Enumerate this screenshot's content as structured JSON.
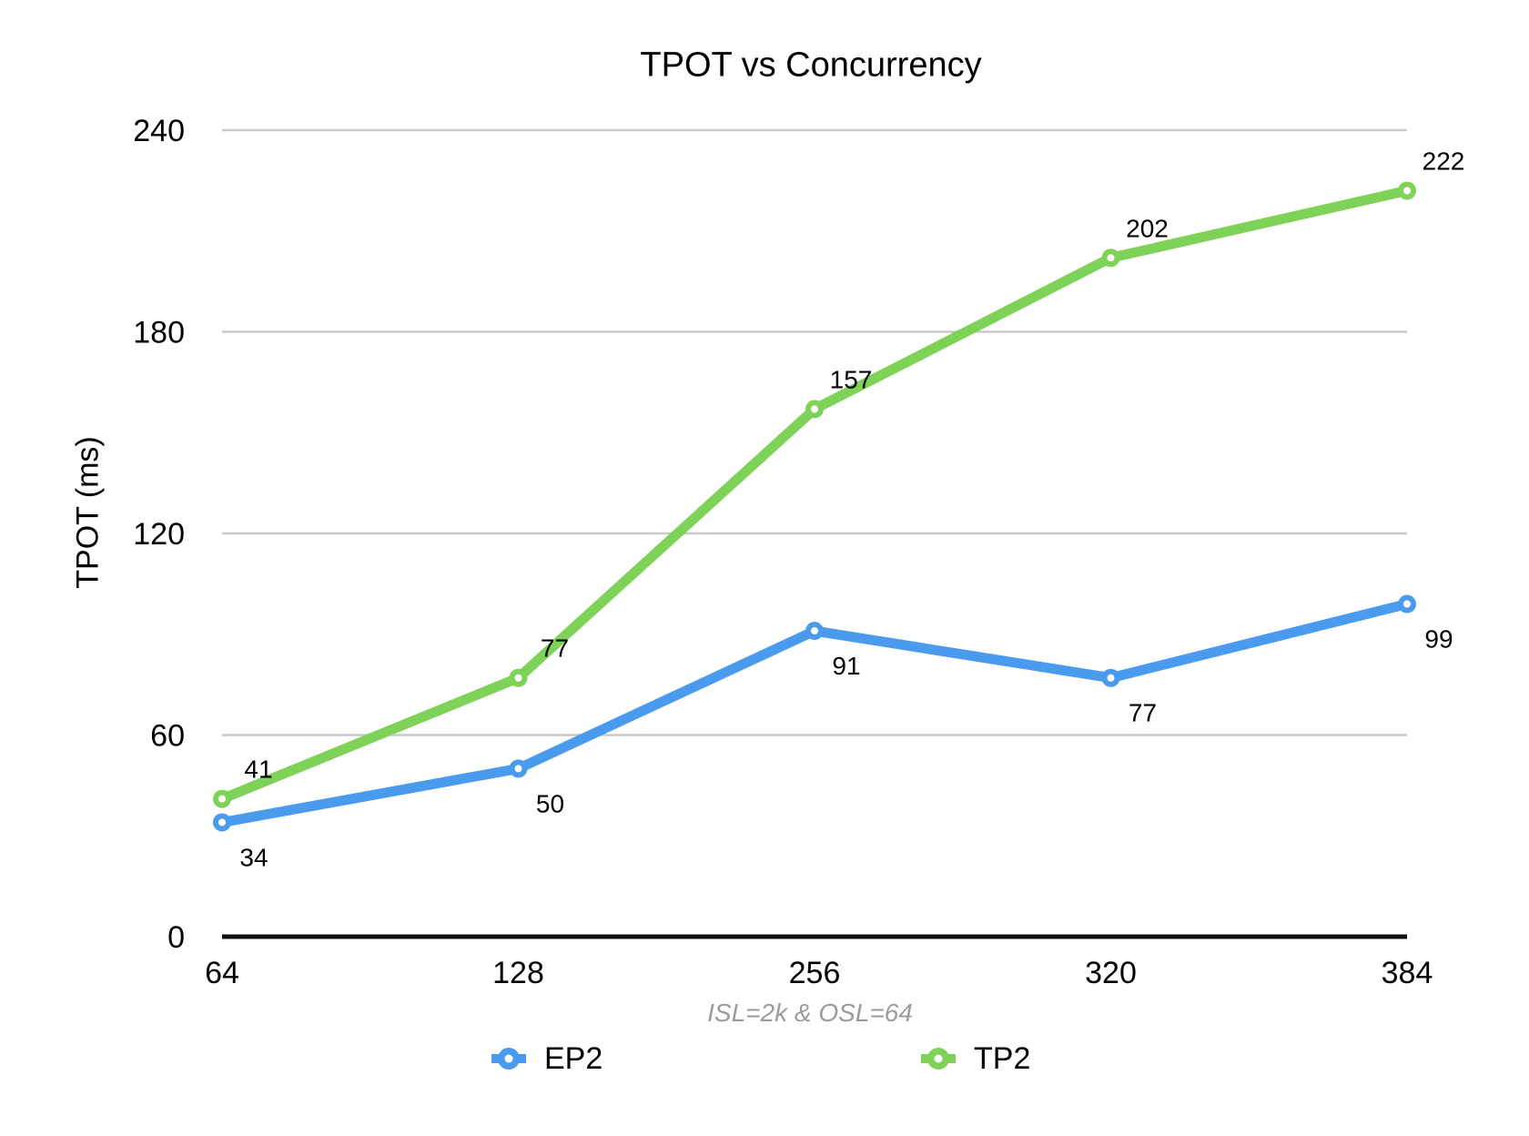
{
  "chart_data": {
    "type": "line",
    "title": "TPOT vs Concurrency",
    "ylabel": "TPOT (ms)",
    "xlabel": "",
    "caption": "ISL=2k & OSL=64",
    "categories": [
      "64",
      "128",
      "256",
      "320",
      "384"
    ],
    "series": [
      {
        "name": "EP2",
        "color": "#4A9BEE",
        "values": [
          34,
          50,
          91,
          77,
          99
        ],
        "label_side": "below"
      },
      {
        "name": "TP2",
        "color": "#7DD257",
        "values": [
          41,
          77,
          157,
          202,
          222
        ],
        "label_side": "above"
      }
    ],
    "y_ticks": [
      0,
      60,
      120,
      180,
      240
    ],
    "ylim": [
      0,
      240
    ],
    "grid": true,
    "legend_position": "bottom",
    "colors": {
      "gridline": "#C9C9C9",
      "axis_line": "#111111",
      "caption_text": "#9B9B9B",
      "label_text": "#000000",
      "background": "#FFFFFF"
    }
  }
}
